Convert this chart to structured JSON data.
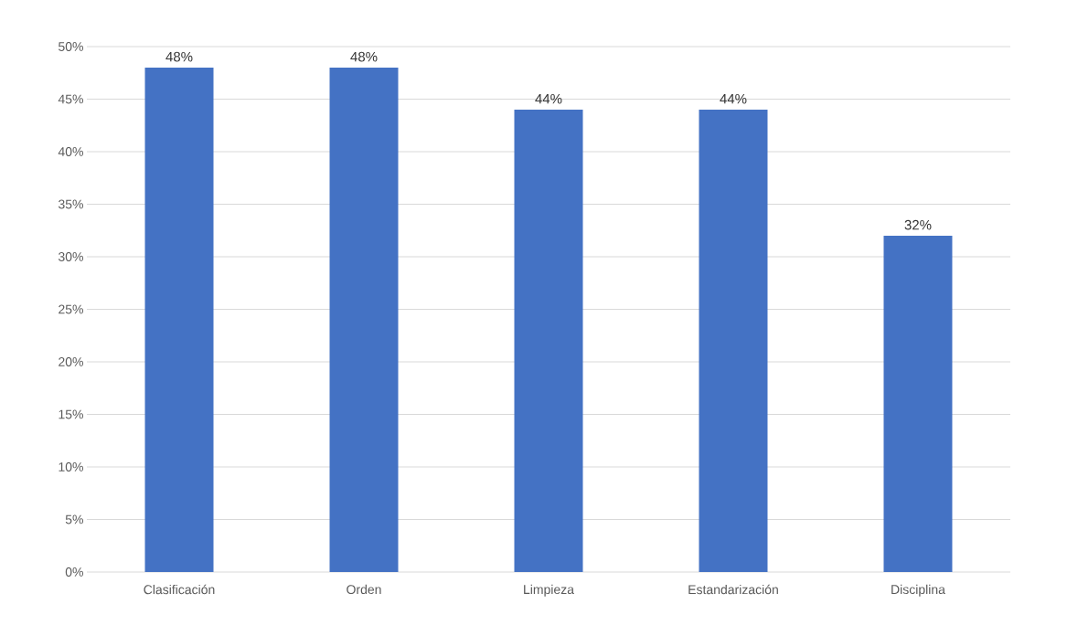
{
  "chart_data": {
    "type": "bar",
    "categories": [
      "Clasificación",
      "Orden",
      "Limpieza",
      "Estandarización",
      "Disciplina"
    ],
    "values": [
      48,
      48,
      44,
      44,
      32
    ],
    "value_labels": [
      "48%",
      "48%",
      "44%",
      "44%",
      "32%"
    ],
    "color": "#4472c4",
    "ylim": [
      0,
      50
    ],
    "yticks": [
      {
        "value": 0,
        "label": "0%"
      },
      {
        "value": 5,
        "label": "5%"
      },
      {
        "value": 10,
        "label": "10%"
      },
      {
        "value": 15,
        "label": "15%"
      },
      {
        "value": 20,
        "label": "20%"
      },
      {
        "value": 25,
        "label": "25%"
      },
      {
        "value": 30,
        "label": "30%"
      },
      {
        "value": 35,
        "label": "35%"
      },
      {
        "value": 40,
        "label": "40%"
      },
      {
        "value": 45,
        "label": "45%"
      },
      {
        "value": 50,
        "label": "50%"
      }
    ],
    "grid": "y"
  }
}
